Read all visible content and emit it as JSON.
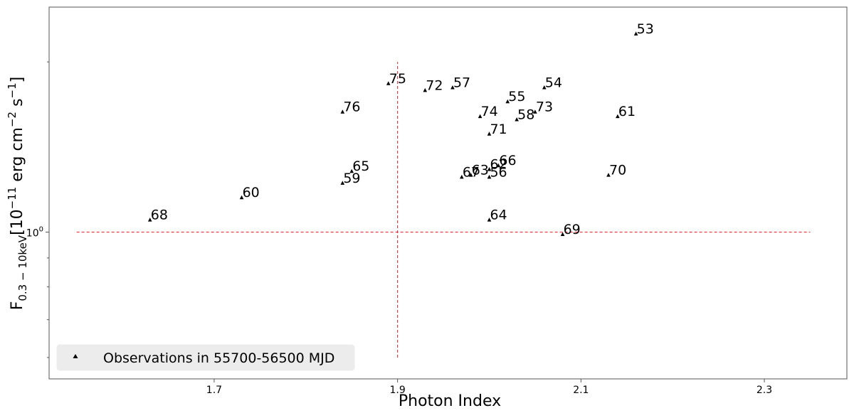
{
  "chart_data": {
    "type": "scatter",
    "title": "",
    "xlabel": "Photon Index",
    "ylabel": {
      "main": "F",
      "subscript": "0.3 − 10keV",
      "bracket": "[10",
      "exponent": "−11",
      "unit_a": " erg cm",
      "unit_a_exp": "−2",
      "unit_b": " s",
      "unit_b_exp": "−1",
      "close": "]"
    },
    "xlim": [
      1.52,
      2.39
    ],
    "ylim": [
      0.55,
      2.5
    ],
    "yscale": "log",
    "xticks": [
      {
        "value": 1.7,
        "label": "1.7"
      },
      {
        "value": 1.9,
        "label": "1.9"
      },
      {
        "value": 2.1,
        "label": "2.1"
      },
      {
        "value": 2.3,
        "label": "2.3"
      }
    ],
    "ytick_major": {
      "value": 1.0,
      "base": "10",
      "exp": "0"
    },
    "ytick_minor": [
      0.6,
      0.7,
      0.8,
      0.9,
      2.0
    ],
    "marker": "triangle",
    "marker_color": "#000000",
    "reference_lines": {
      "color": "#e8202a",
      "vertical_x": 1.9,
      "vertical_y_range": [
        0.6,
        2.0
      ],
      "horizontal_y": 1.0,
      "horizontal_x_range": [
        1.55,
        2.35
      ]
    },
    "legend": {
      "placement": "lower-left",
      "label": "Observations in 55700-56500 MJD"
    },
    "points": [
      {
        "label": "53",
        "x": 2.16,
        "y": 2.24
      },
      {
        "label": "54",
        "x": 2.06,
        "y": 1.8
      },
      {
        "label": "55",
        "x": 2.02,
        "y": 1.7
      },
      {
        "label": "57",
        "x": 1.96,
        "y": 1.8
      },
      {
        "label": "72",
        "x": 1.93,
        "y": 1.78
      },
      {
        "label": "75",
        "x": 1.89,
        "y": 1.83
      },
      {
        "label": "76",
        "x": 1.84,
        "y": 1.63
      },
      {
        "label": "74",
        "x": 1.99,
        "y": 1.6
      },
      {
        "label": "58",
        "x": 2.03,
        "y": 1.58
      },
      {
        "label": "73",
        "x": 2.05,
        "y": 1.63
      },
      {
        "label": "61",
        "x": 2.14,
        "y": 1.6
      },
      {
        "label": "71",
        "x": 2.0,
        "y": 1.49
      },
      {
        "label": "65",
        "x": 1.85,
        "y": 1.28
      },
      {
        "label": "59",
        "x": 1.84,
        "y": 1.22
      },
      {
        "label": "60",
        "x": 1.73,
        "y": 1.15
      },
      {
        "label": "68",
        "x": 1.63,
        "y": 1.05
      },
      {
        "label": "67",
        "x": 1.97,
        "y": 1.25
      },
      {
        "label": "63",
        "x": 1.98,
        "y": 1.26
      },
      {
        "label": "62",
        "x": 2.0,
        "y": 1.29
      },
      {
        "label": "66",
        "x": 2.01,
        "y": 1.31
      },
      {
        "label": "56",
        "x": 2.0,
        "y": 1.25
      },
      {
        "label": "70",
        "x": 2.13,
        "y": 1.26
      },
      {
        "label": "64",
        "x": 2.0,
        "y": 1.05
      },
      {
        "label": "69",
        "x": 2.08,
        "y": 0.99
      }
    ]
  }
}
